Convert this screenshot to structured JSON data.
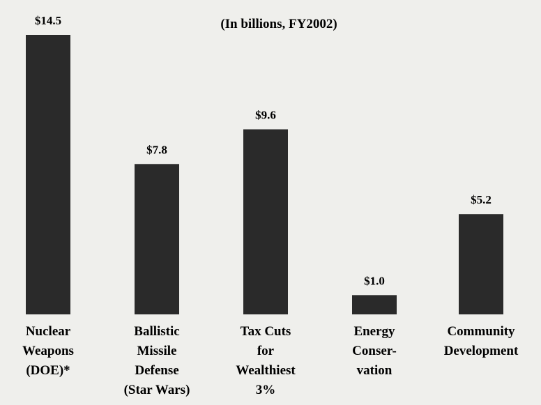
{
  "chart_data": {
    "type": "bar",
    "subtitle": "(In billions, FY2002)",
    "categories": [
      [
        "Nuclear",
        "Weapons",
        "(DOE)*"
      ],
      [
        "Ballistic",
        "Missile",
        "Defense",
        "(Star Wars)"
      ],
      [
        "Tax Cuts",
        "for",
        "Wealthiest",
        "3%"
      ],
      [
        "Energy",
        "Conser-",
        "vation"
      ],
      [
        "Community",
        "Development"
      ]
    ],
    "values": [
      14.5,
      7.8,
      9.6,
      1.0,
      5.2
    ],
    "value_labels": [
      "$14.5",
      "$7.8",
      "$9.6",
      "$1.0",
      "$5.2"
    ],
    "ylim": [
      0,
      14.5
    ],
    "grid": false,
    "colors": {
      "bar": "#2a2a2a",
      "text": "#1f1f1f",
      "background": "#efefec"
    }
  }
}
